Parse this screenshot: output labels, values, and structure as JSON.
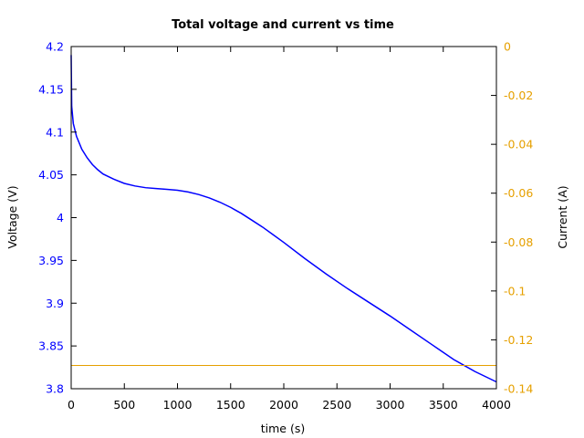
{
  "chart_data": {
    "type": "line",
    "title": "Total voltage and current vs time",
    "xlabel": "time (s)",
    "ylabel": "Voltage (V)",
    "y2label": "Current (A)",
    "xlim": [
      0,
      4000
    ],
    "ylim": [
      3.8,
      4.2
    ],
    "y2lim": [
      -0.14,
      0
    ],
    "x_ticks": [
      "0",
      "500",
      "1000",
      "1500",
      "2000",
      "2500",
      "3000",
      "3500",
      "4000"
    ],
    "y_ticks": [
      "3.8",
      "3.85",
      "3.9",
      "3.95",
      "4",
      "4.05",
      "4.1",
      "4.15",
      "4.2"
    ],
    "y2_ticks": [
      "-0.14",
      "-0.12",
      "-0.1",
      "-0.08",
      "-0.06",
      "-0.04",
      "-0.02",
      "0"
    ],
    "grid": false,
    "colors": {
      "voltage": "#0000ff",
      "current": "#e6a000",
      "axis": "#000000"
    },
    "series": [
      {
        "axis": "left",
        "x": [
          0,
          5,
          20,
          50,
          100,
          150,
          200,
          250,
          300,
          400,
          500,
          600,
          700,
          800,
          900,
          1000,
          1100,
          1200,
          1300,
          1400,
          1500,
          1600,
          1700,
          1800,
          1900,
          2000,
          2200,
          2400,
          2600,
          2800,
          3000,
          3200,
          3400,
          3600,
          3800,
          4000
        ],
        "values": [
          4.19,
          4.13,
          4.11,
          4.095,
          4.08,
          4.07,
          4.062,
          4.056,
          4.051,
          4.045,
          4.04,
          4.037,
          4.035,
          4.034,
          4.033,
          4.032,
          4.03,
          4.027,
          4.023,
          4.018,
          4.012,
          4.005,
          3.997,
          3.989,
          3.98,
          3.971,
          3.952,
          3.934,
          3.917,
          3.901,
          3.885,
          3.868,
          3.851,
          3.834,
          3.82,
          3.808
        ]
      },
      {
        "axis": "right",
        "x": [
          0,
          4000
        ],
        "values": [
          -0.1305,
          -0.1305
        ]
      }
    ]
  }
}
